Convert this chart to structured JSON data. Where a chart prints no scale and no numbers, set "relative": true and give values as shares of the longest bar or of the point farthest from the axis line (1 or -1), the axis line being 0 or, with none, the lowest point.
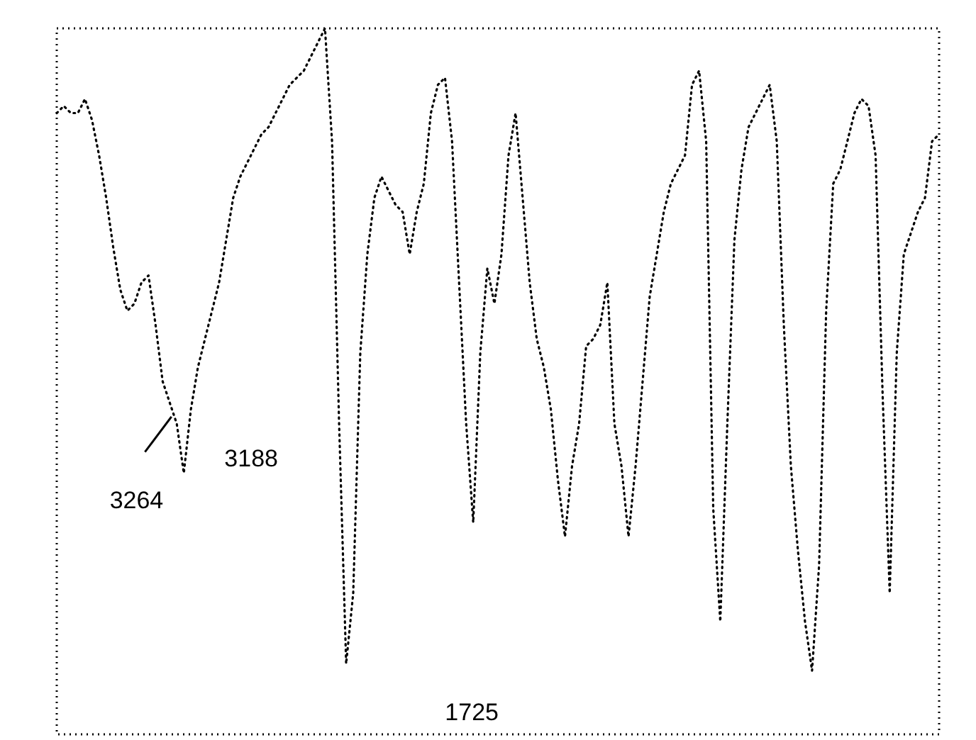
{
  "chart_data": {
    "type": "line",
    "relative": true,
    "line_style": "dotted",
    "marker": "none",
    "categories": [
      null,
      null,
      null,
      null,
      null,
      null,
      null,
      null,
      null,
      null,
      null,
      null,
      null,
      null,
      null,
      null,
      null,
      null,
      null,
      null,
      null,
      null,
      null,
      null,
      null,
      null,
      null,
      null,
      null,
      null,
      null,
      null,
      null,
      null,
      null,
      null,
      null,
      null,
      null,
      null,
      null,
      null,
      null,
      null,
      null,
      null,
      null,
      null,
      null,
      null,
      null,
      null,
      null,
      null,
      null,
      null,
      null,
      null,
      null,
      null,
      null,
      null,
      null,
      null,
      null,
      null,
      null,
      null,
      null,
      null,
      null,
      null,
      null,
      null,
      null,
      null,
      null,
      null,
      null,
      null,
      null,
      null,
      null,
      null,
      null,
      null,
      null,
      null,
      null,
      null,
      null,
      null,
      null,
      null,
      null,
      null,
      null,
      null,
      null,
      null,
      null,
      null,
      null,
      null,
      null,
      null,
      null,
      null,
      null,
      null,
      null,
      null,
      null,
      null,
      null,
      null,
      null,
      null,
      null,
      null,
      null,
      null,
      null,
      null,
      null,
      null
    ],
    "series": [
      {
        "color": "#000000",
        "values": [
          0.88,
          0.89,
          0.88,
          0.88,
          0.9,
          0.87,
          0.82,
          0.76,
          0.69,
          0.63,
          0.6,
          0.61,
          0.64,
          0.65,
          0.58,
          0.5,
          0.47,
          0.44,
          0.37,
          0.46,
          0.52,
          0.56,
          0.6,
          0.64,
          0.7,
          0.76,
          0.79,
          0.81,
          0.83,
          0.85,
          0.86,
          0.88,
          0.9,
          0.92,
          0.93,
          0.94,
          0.96,
          0.98,
          1,
          0.84,
          0.44,
          0.1,
          0.2,
          0.54,
          0.68,
          0.76,
          0.79,
          0.77,
          0.75,
          0.74,
          0.68,
          0.74,
          0.78,
          0.88,
          0.92,
          0.93,
          0.84,
          0.64,
          0.44,
          0.3,
          0.54,
          0.66,
          0.61,
          0.68,
          0.82,
          0.88,
          0.76,
          0.64,
          0.56,
          0.52,
          0.46,
          0.36,
          0.28,
          0.38,
          0.44,
          0.55,
          0.56,
          0.58,
          0.64,
          0.44,
          0.38,
          0.28,
          0.38,
          0.5,
          0.62,
          0.68,
          0.74,
          0.78,
          0.8,
          0.82,
          0.92,
          0.94,
          0.84,
          0.32,
          0.16,
          0.44,
          0.7,
          0.8,
          0.86,
          0.88,
          0.9,
          0.92,
          0.84,
          0.58,
          0.38,
          0.26,
          0.16,
          0.09,
          0.24,
          0.6,
          0.78,
          0.8,
          0.84,
          0.88,
          0.9,
          0.89,
          0.82,
          0.48,
          0.2,
          0.54,
          0.68,
          0.71,
          0.74,
          0.76,
          0.84,
          0.85
        ]
      }
    ],
    "annotations": [
      "3264",
      "3188",
      "1725"
    ]
  }
}
